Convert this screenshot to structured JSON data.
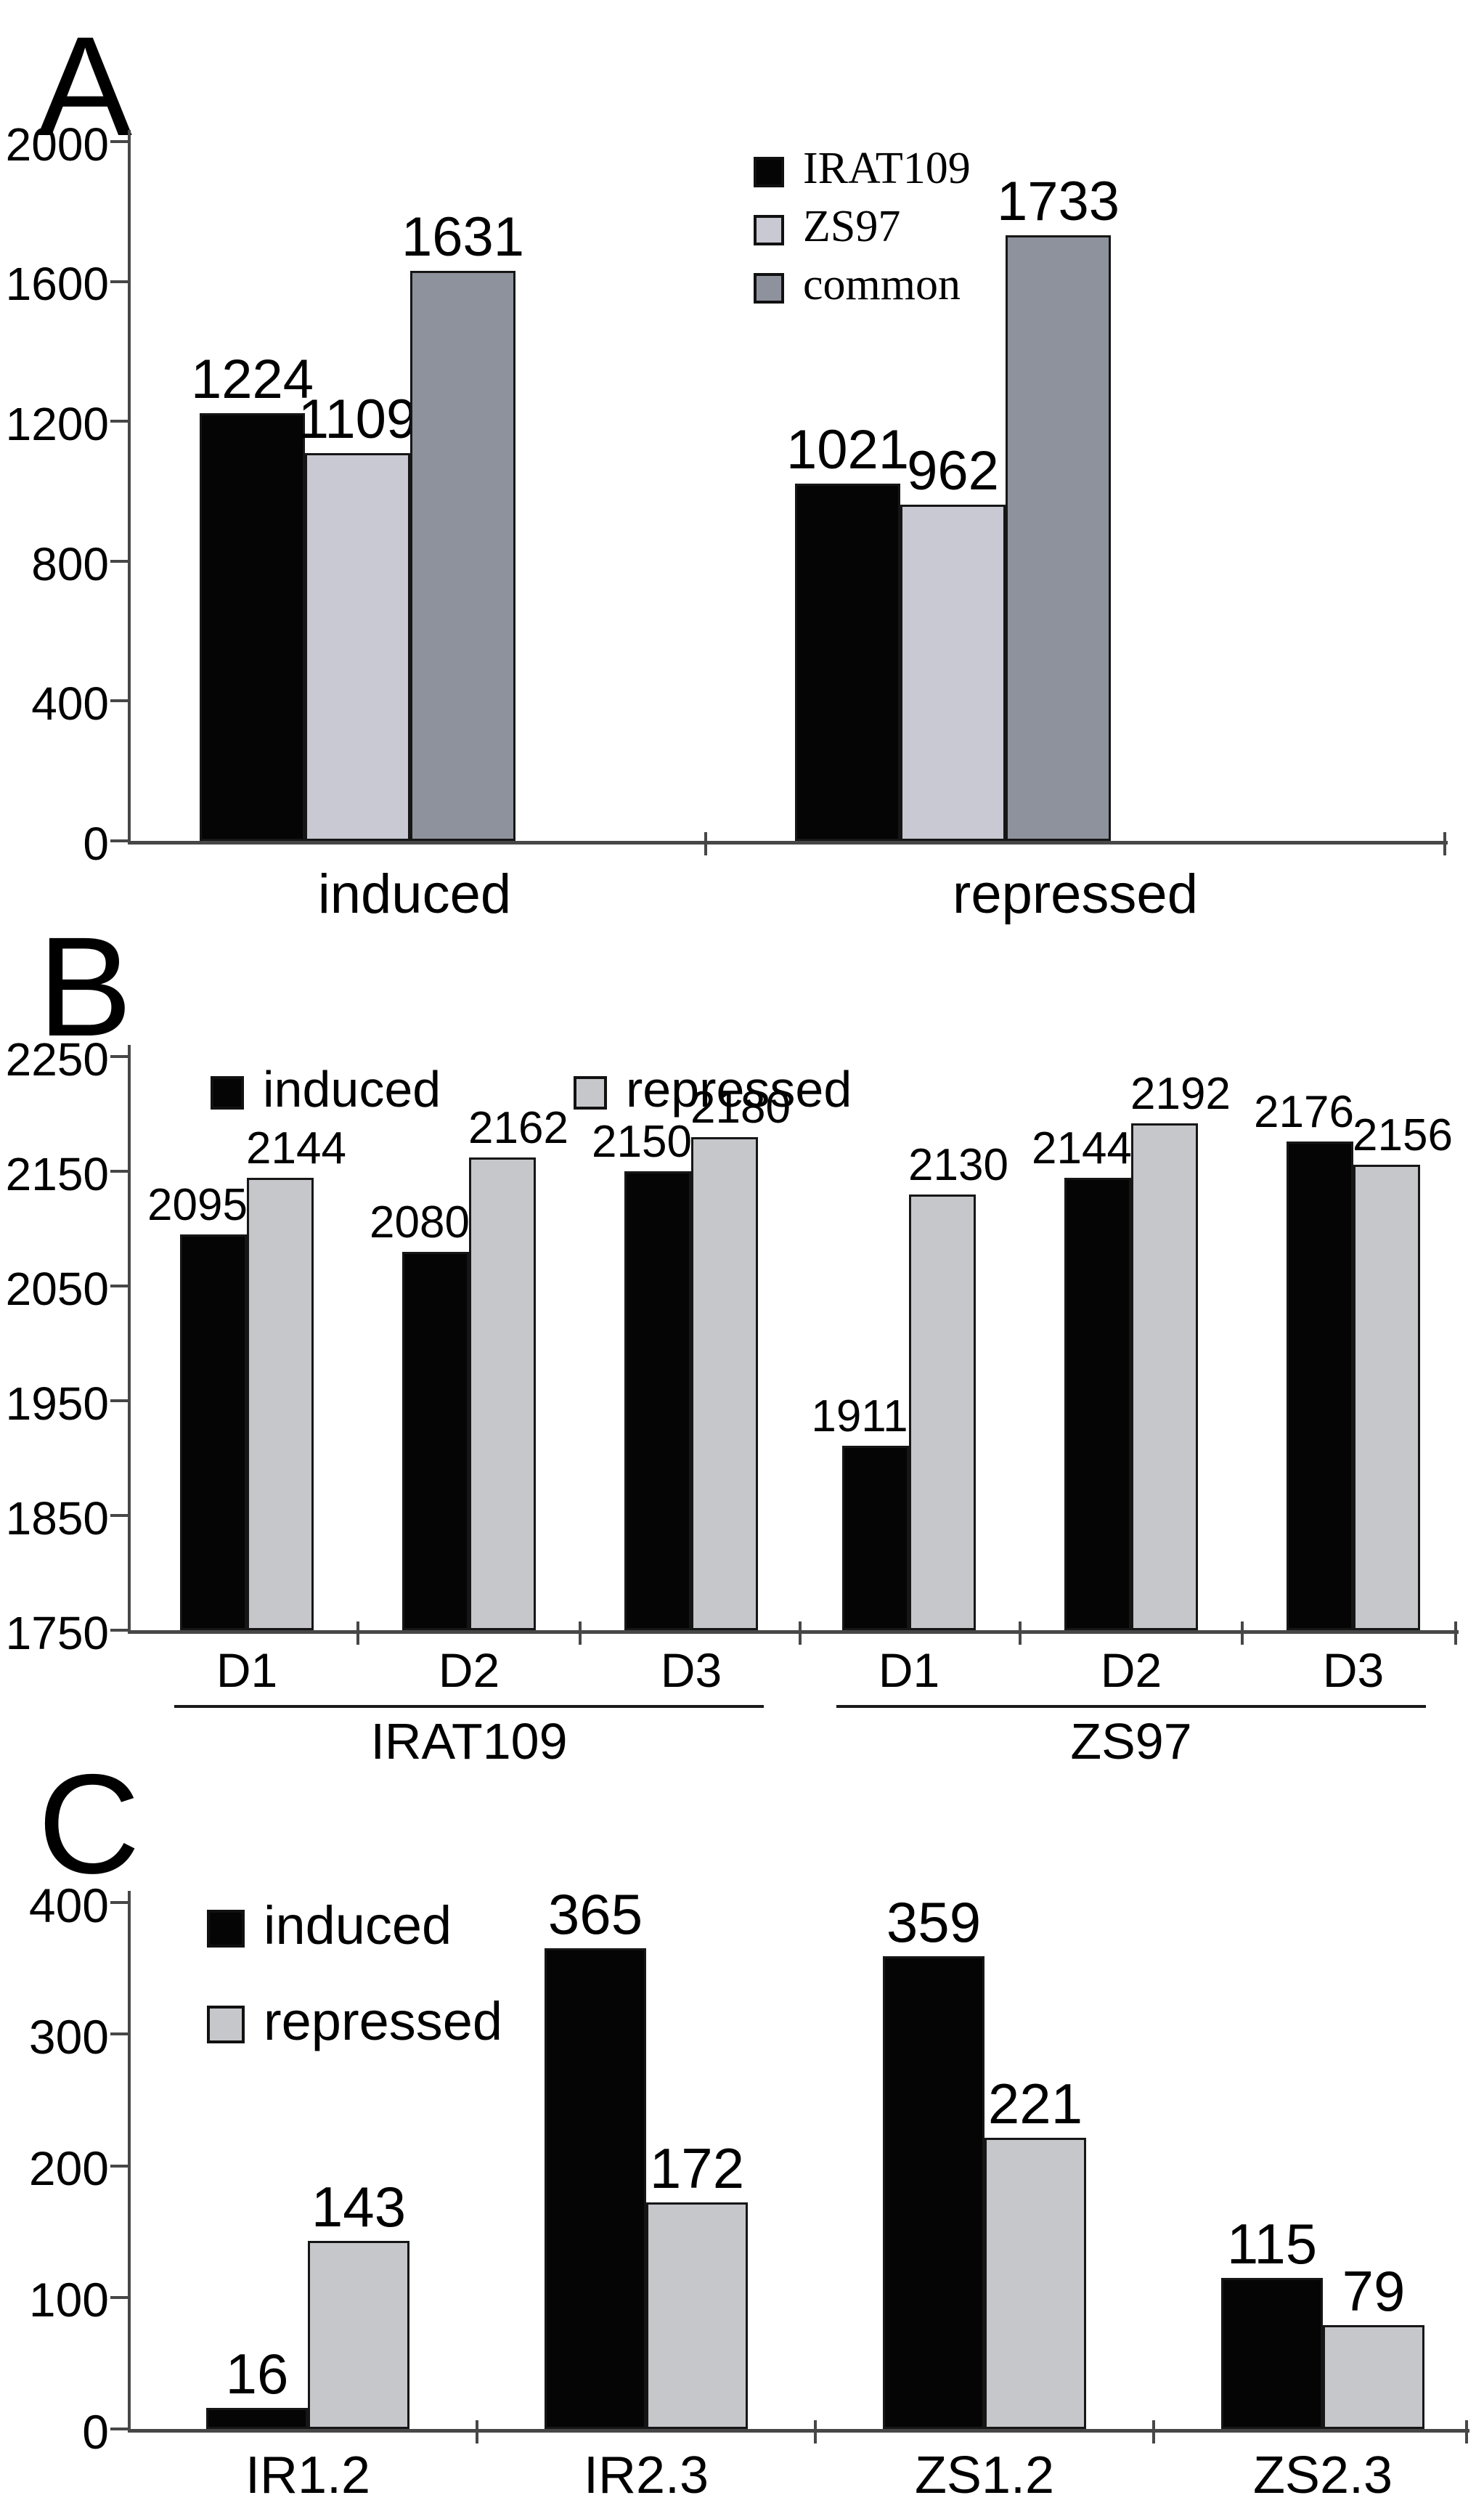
{
  "figure": {
    "background": "#ffffff",
    "text_color": "#000000",
    "axis_color": "#474747"
  },
  "chart_data": [
    {
      "panel_label": "A",
      "type": "bar",
      "title": "",
      "xlabel": "",
      "ylabel": "",
      "categories": [
        "induced",
        "repressed"
      ],
      "series": [
        {
          "name": "IRAT109",
          "color": "#050505",
          "values": [
            1224,
            1021
          ]
        },
        {
          "name": "ZS97",
          "color": "#c8c9d2",
          "values": [
            1109,
            962
          ]
        },
        {
          "name": "common",
          "color": "#8e929d",
          "values": [
            1631,
            1733
          ]
        }
      ],
      "ylim": [
        0,
        2000
      ],
      "yticks": [
        2000,
        1600,
        1200,
        800,
        400,
        0
      ],
      "legend_position": "top-center-vertical",
      "grid": false
    },
    {
      "panel_label": "B",
      "type": "bar",
      "title": "",
      "xlabel": "",
      "ylabel": "",
      "categories": [
        "D1",
        "D2",
        "D3",
        "D1",
        "D2",
        "D3"
      ],
      "groups": [
        {
          "label": "IRAT109"
        },
        {
          "label": "ZS97"
        }
      ],
      "series": [
        {
          "name": "induced",
          "color": "#050505",
          "values": [
            2095,
            2080,
            2150,
            1911,
            2144,
            2176
          ]
        },
        {
          "name": "repressed",
          "color": "#c6c7cb",
          "values": [
            2144,
            2162,
            2180,
            2130,
            2192,
            2156
          ]
        }
      ],
      "ylim": [
        1750,
        2250
      ],
      "yticks": [
        2250,
        2150,
        2050,
        1950,
        1850,
        1750
      ],
      "legend_position": "top-left-horizontal",
      "grid": false
    },
    {
      "panel_label": "C",
      "type": "bar",
      "title": "",
      "xlabel": "",
      "ylabel": "",
      "categories": [
        "IR1.2",
        "IR2.3",
        "ZS1.2",
        "ZS2.3"
      ],
      "series": [
        {
          "name": "induced",
          "color": "#050505",
          "values": [
            16,
            365,
            359,
            115
          ]
        },
        {
          "name": "repressed",
          "color": "#c6c7cb",
          "values": [
            143,
            172,
            221,
            79
          ]
        }
      ],
      "ylim": [
        0,
        400
      ],
      "yticks": [
        400,
        300,
        200,
        100,
        0
      ],
      "legend_position": "top-left-vertical",
      "grid": false
    }
  ]
}
